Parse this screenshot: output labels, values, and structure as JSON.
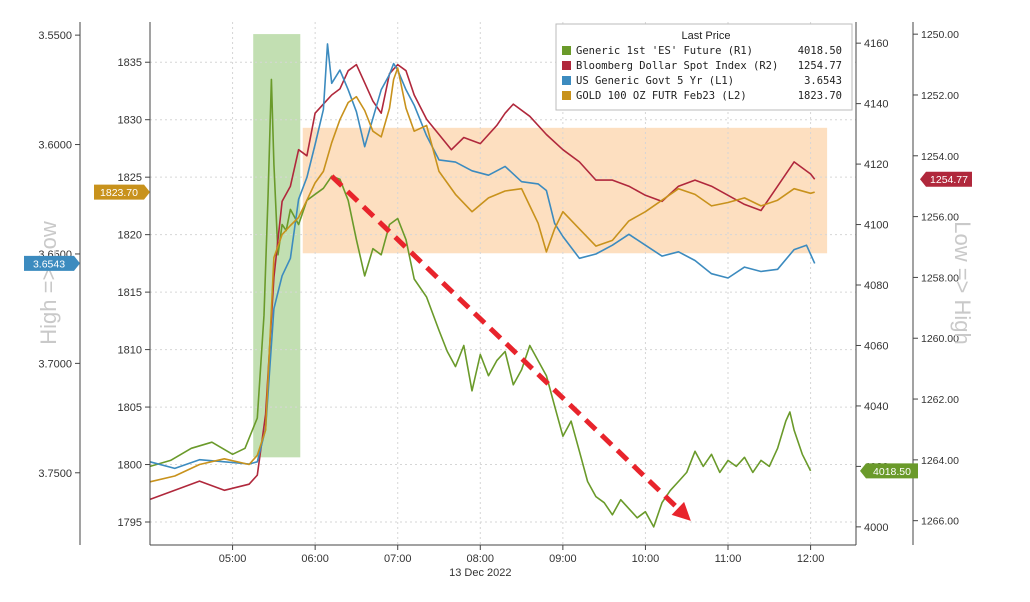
{
  "chart_data": {
    "type": "line",
    "date_label": "13 Dec 2022",
    "x_ticks": [
      "05:00",
      "06:00",
      "07:00",
      "08:00",
      "09:00",
      "10:00",
      "11:00",
      "12:00"
    ],
    "x_range": [
      4.0,
      12.55
    ],
    "axes": {
      "L1": {
        "ticks": [
          "3.5500",
          "3.6000",
          "3.6500",
          "3.7000",
          "3.7500"
        ],
        "range": [
          3.544,
          3.783
        ],
        "inverted": true
      },
      "L2": {
        "ticks": [
          "1835",
          "1830",
          "1825",
          "1820",
          "1815",
          "1810",
          "1805",
          "1800",
          "1795"
        ],
        "range": [
          1793.0,
          1838.5
        ]
      },
      "R1": {
        "ticks": [
          "4160",
          "4140",
          "4120",
          "4100",
          "4080",
          "4060",
          "4040",
          "4020",
          "4000"
        ],
        "range": [
          3994.0,
          4167.0
        ]
      },
      "R2": {
        "ticks": [
          "1250.00",
          "1252.00",
          "1254.00",
          "1256.00",
          "1258.00",
          "1260.00",
          "1262.00",
          "1264.00",
          "1266.00"
        ],
        "range": [
          1249.6,
          1266.8
        ],
        "inverted": true
      }
    },
    "side_labels": {
      "left": "High => Low",
      "right": "Low => High"
    },
    "legend": {
      "title": "Last Price",
      "placement": "top-right",
      "entries": [
        {
          "label": "Generic 1st 'ES' Future  (R1)",
          "value": "4018.50",
          "color": "#6a9a2a"
        },
        {
          "label": "Bloomberg Dollar Spot Index  (R2)",
          "value": "1254.77",
          "color": "#b0283c"
        },
        {
          "label": "US Generic Govt 5 Yr  (L1)",
          "value": "3.6543",
          "color": "#3c8bbf"
        },
        {
          "label": "GOLD 100 OZ FUTR Feb23  (L2)",
          "value": "1823.70",
          "color": "#c8921c"
        }
      ]
    },
    "last_value_badges": [
      {
        "axis": "L2",
        "text": "1823.70",
        "value": 1823.7,
        "color": "#c8921c"
      },
      {
        "axis": "L1",
        "text": "3.6543",
        "value": 3.6543,
        "color": "#3c8bbf"
      },
      {
        "axis": "R2",
        "text": "1254.77",
        "value": 1254.77,
        "color": "#b0283c"
      },
      {
        "axis": "R1",
        "text": "4018.50",
        "value": 4018.5,
        "color": "#6a9a2a"
      }
    ],
    "highlight_bands": [
      {
        "x_start": 5.25,
        "x_end": 5.82,
        "y_axis": "R1",
        "y_start": 4023.0,
        "y_end": 4163.0,
        "color": "#b7d9a4"
      },
      {
        "x_start": 5.85,
        "x_end": 12.2,
        "y_axis": "R1",
        "y_start": 4090.5,
        "y_end": 4132.0,
        "color": "#fdd9b5"
      }
    ],
    "trend_arrow": {
      "axis": "R1",
      "from": [
        6.2,
        4116.0
      ],
      "to": [
        10.55,
        4002.0
      ],
      "color": "#e8242c"
    },
    "series": [
      {
        "name": "Generic 1st 'ES' Future",
        "axis": "R1",
        "color": "#6a9a2a",
        "x": [
          4.0,
          4.25,
          4.5,
          4.75,
          5.0,
          5.15,
          5.3,
          5.38,
          5.43,
          5.47,
          5.5,
          5.55,
          5.6,
          5.65,
          5.7,
          5.8,
          5.9,
          6.0,
          6.1,
          6.2,
          6.3,
          6.4,
          6.5,
          6.6,
          6.7,
          6.8,
          6.9,
          7.0,
          7.1,
          7.2,
          7.35,
          7.5,
          7.6,
          7.7,
          7.8,
          7.9,
          8.0,
          8.1,
          8.2,
          8.3,
          8.4,
          8.5,
          8.6,
          8.7,
          8.8,
          8.9,
          9.0,
          9.1,
          9.2,
          9.3,
          9.4,
          9.5,
          9.6,
          9.7,
          9.8,
          9.9,
          10.0,
          10.1,
          10.2,
          10.3,
          10.4,
          10.5,
          10.6,
          10.7,
          10.8,
          10.9,
          11.0,
          11.1,
          11.2,
          11.3,
          11.4,
          11.5,
          11.6,
          11.7,
          11.75,
          11.8,
          11.9,
          12.0
        ],
        "y": [
          4020,
          4022,
          4026,
          4028,
          4024,
          4026,
          4036,
          4070,
          4110,
          4148,
          4120,
          4090,
          4100,
          4098,
          4105,
          4100,
          4108,
          4110,
          4112,
          4116,
          4115,
          4108,
          4095,
          4083,
          4092,
          4090,
          4100,
          4102,
          4095,
          4082,
          4076,
          4065,
          4058,
          4053,
          4060,
          4045,
          4057,
          4050,
          4055,
          4058,
          4047,
          4052,
          4060,
          4055,
          4050,
          4040,
          4030,
          4035,
          4025,
          4015,
          4010,
          4008,
          4004,
          4009,
          4006,
          4003,
          4005,
          4000,
          4008,
          4012,
          4015,
          4018,
          4025,
          4020,
          4024,
          4018,
          4022,
          4020,
          4023,
          4018,
          4022,
          4020,
          4026,
          4035,
          4038,
          4032,
          4024,
          4018.5
        ]
      },
      {
        "name": "Bloomberg Dollar Spot Index",
        "axis": "R2",
        "color": "#b0283c",
        "x": [
          4.0,
          4.3,
          4.6,
          4.9,
          5.2,
          5.3,
          5.4,
          5.5,
          5.6,
          5.7,
          5.8,
          5.9,
          6.0,
          6.1,
          6.2,
          6.3,
          6.4,
          6.5,
          6.6,
          6.7,
          6.8,
          6.9,
          7.0,
          7.1,
          7.2,
          7.35,
          7.5,
          7.65,
          7.8,
          8.0,
          8.2,
          8.3,
          8.4,
          8.6,
          8.8,
          9.0,
          9.2,
          9.4,
          9.6,
          9.8,
          10.0,
          10.2,
          10.4,
          10.6,
          10.8,
          11.0,
          11.2,
          11.4,
          11.6,
          11.8,
          12.0,
          12.05
        ],
        "y": [
          1265.3,
          1265.0,
          1264.7,
          1265.0,
          1264.8,
          1264.5,
          1262.5,
          1258.0,
          1255.5,
          1255.0,
          1253.8,
          1254.0,
          1252.6,
          1252.3,
          1252.0,
          1251.8,
          1251.2,
          1251.0,
          1251.6,
          1252.2,
          1252.6,
          1251.3,
          1251.0,
          1251.2,
          1252.0,
          1252.8,
          1253.3,
          1253.8,
          1253.4,
          1253.6,
          1253.0,
          1252.6,
          1252.3,
          1252.7,
          1253.3,
          1253.8,
          1254.2,
          1254.8,
          1254.8,
          1255.0,
          1255.3,
          1255.5,
          1255.0,
          1254.8,
          1255.0,
          1255.3,
          1255.6,
          1255.8,
          1255.0,
          1254.2,
          1254.6,
          1254.77
        ]
      },
      {
        "name": "US Generic Govt 5 Yr",
        "axis": "L1",
        "color": "#3c8bbf",
        "x": [
          4.0,
          4.3,
          4.6,
          4.9,
          5.2,
          5.3,
          5.4,
          5.5,
          5.6,
          5.7,
          5.8,
          5.9,
          6.0,
          6.1,
          6.15,
          6.2,
          6.3,
          6.4,
          6.5,
          6.6,
          6.7,
          6.8,
          6.9,
          6.95,
          7.0,
          7.1,
          7.2,
          7.35,
          7.5,
          7.7,
          7.9,
          8.1,
          8.3,
          8.5,
          8.7,
          8.8,
          8.9,
          9.0,
          9.2,
          9.4,
          9.6,
          9.8,
          10.0,
          10.2,
          10.4,
          10.6,
          10.8,
          11.0,
          11.2,
          11.4,
          11.6,
          11.8,
          11.95,
          12.05
        ],
        "y": [
          3.745,
          3.748,
          3.744,
          3.745,
          3.746,
          3.745,
          3.73,
          3.675,
          3.66,
          3.652,
          3.625,
          3.615,
          3.6,
          3.584,
          3.554,
          3.572,
          3.566,
          3.575,
          3.585,
          3.601,
          3.588,
          3.575,
          3.568,
          3.563,
          3.566,
          3.575,
          3.582,
          3.596,
          3.607,
          3.608,
          3.612,
          3.614,
          3.61,
          3.617,
          3.618,
          3.621,
          3.636,
          3.642,
          3.652,
          3.65,
          3.646,
          3.641,
          3.646,
          3.651,
          3.649,
          3.653,
          3.659,
          3.661,
          3.656,
          3.658,
          3.657,
          3.648,
          3.646,
          3.6543
        ]
      },
      {
        "name": "GOLD 100 OZ FUTR Feb23",
        "axis": "L2",
        "color": "#c8921c",
        "x": [
          4.0,
          4.3,
          4.6,
          4.9,
          5.2,
          5.3,
          5.4,
          5.5,
          5.6,
          5.7,
          5.8,
          5.9,
          6.0,
          6.1,
          6.2,
          6.3,
          6.4,
          6.5,
          6.6,
          6.7,
          6.8,
          6.9,
          6.95,
          7.0,
          7.1,
          7.2,
          7.35,
          7.5,
          7.7,
          7.9,
          8.1,
          8.3,
          8.5,
          8.6,
          8.7,
          8.8,
          8.9,
          9.0,
          9.2,
          9.4,
          9.6,
          9.8,
          10.0,
          10.2,
          10.4,
          10.6,
          10.8,
          11.0,
          11.2,
          11.4,
          11.6,
          11.8,
          12.0,
          12.05
        ],
        "y": [
          1798.5,
          1799.0,
          1800.0,
          1800.5,
          1800.0,
          1800.8,
          1803.0,
          1818.0,
          1820.0,
          1820.8,
          1821.5,
          1823.0,
          1824.5,
          1825.5,
          1828.0,
          1830.0,
          1831.5,
          1832.0,
          1830.8,
          1829.0,
          1828.5,
          1831.0,
          1833.5,
          1834.5,
          1831.0,
          1829.0,
          1829.5,
          1825.5,
          1823.5,
          1822.0,
          1823.2,
          1823.8,
          1824.0,
          1822.5,
          1821.0,
          1818.5,
          1820.5,
          1822.0,
          1820.5,
          1819.0,
          1819.5,
          1821.2,
          1822.0,
          1823.0,
          1824.0,
          1823.5,
          1822.5,
          1822.8,
          1823.2,
          1822.5,
          1823.0,
          1824.0,
          1823.6,
          1823.7
        ]
      }
    ]
  }
}
